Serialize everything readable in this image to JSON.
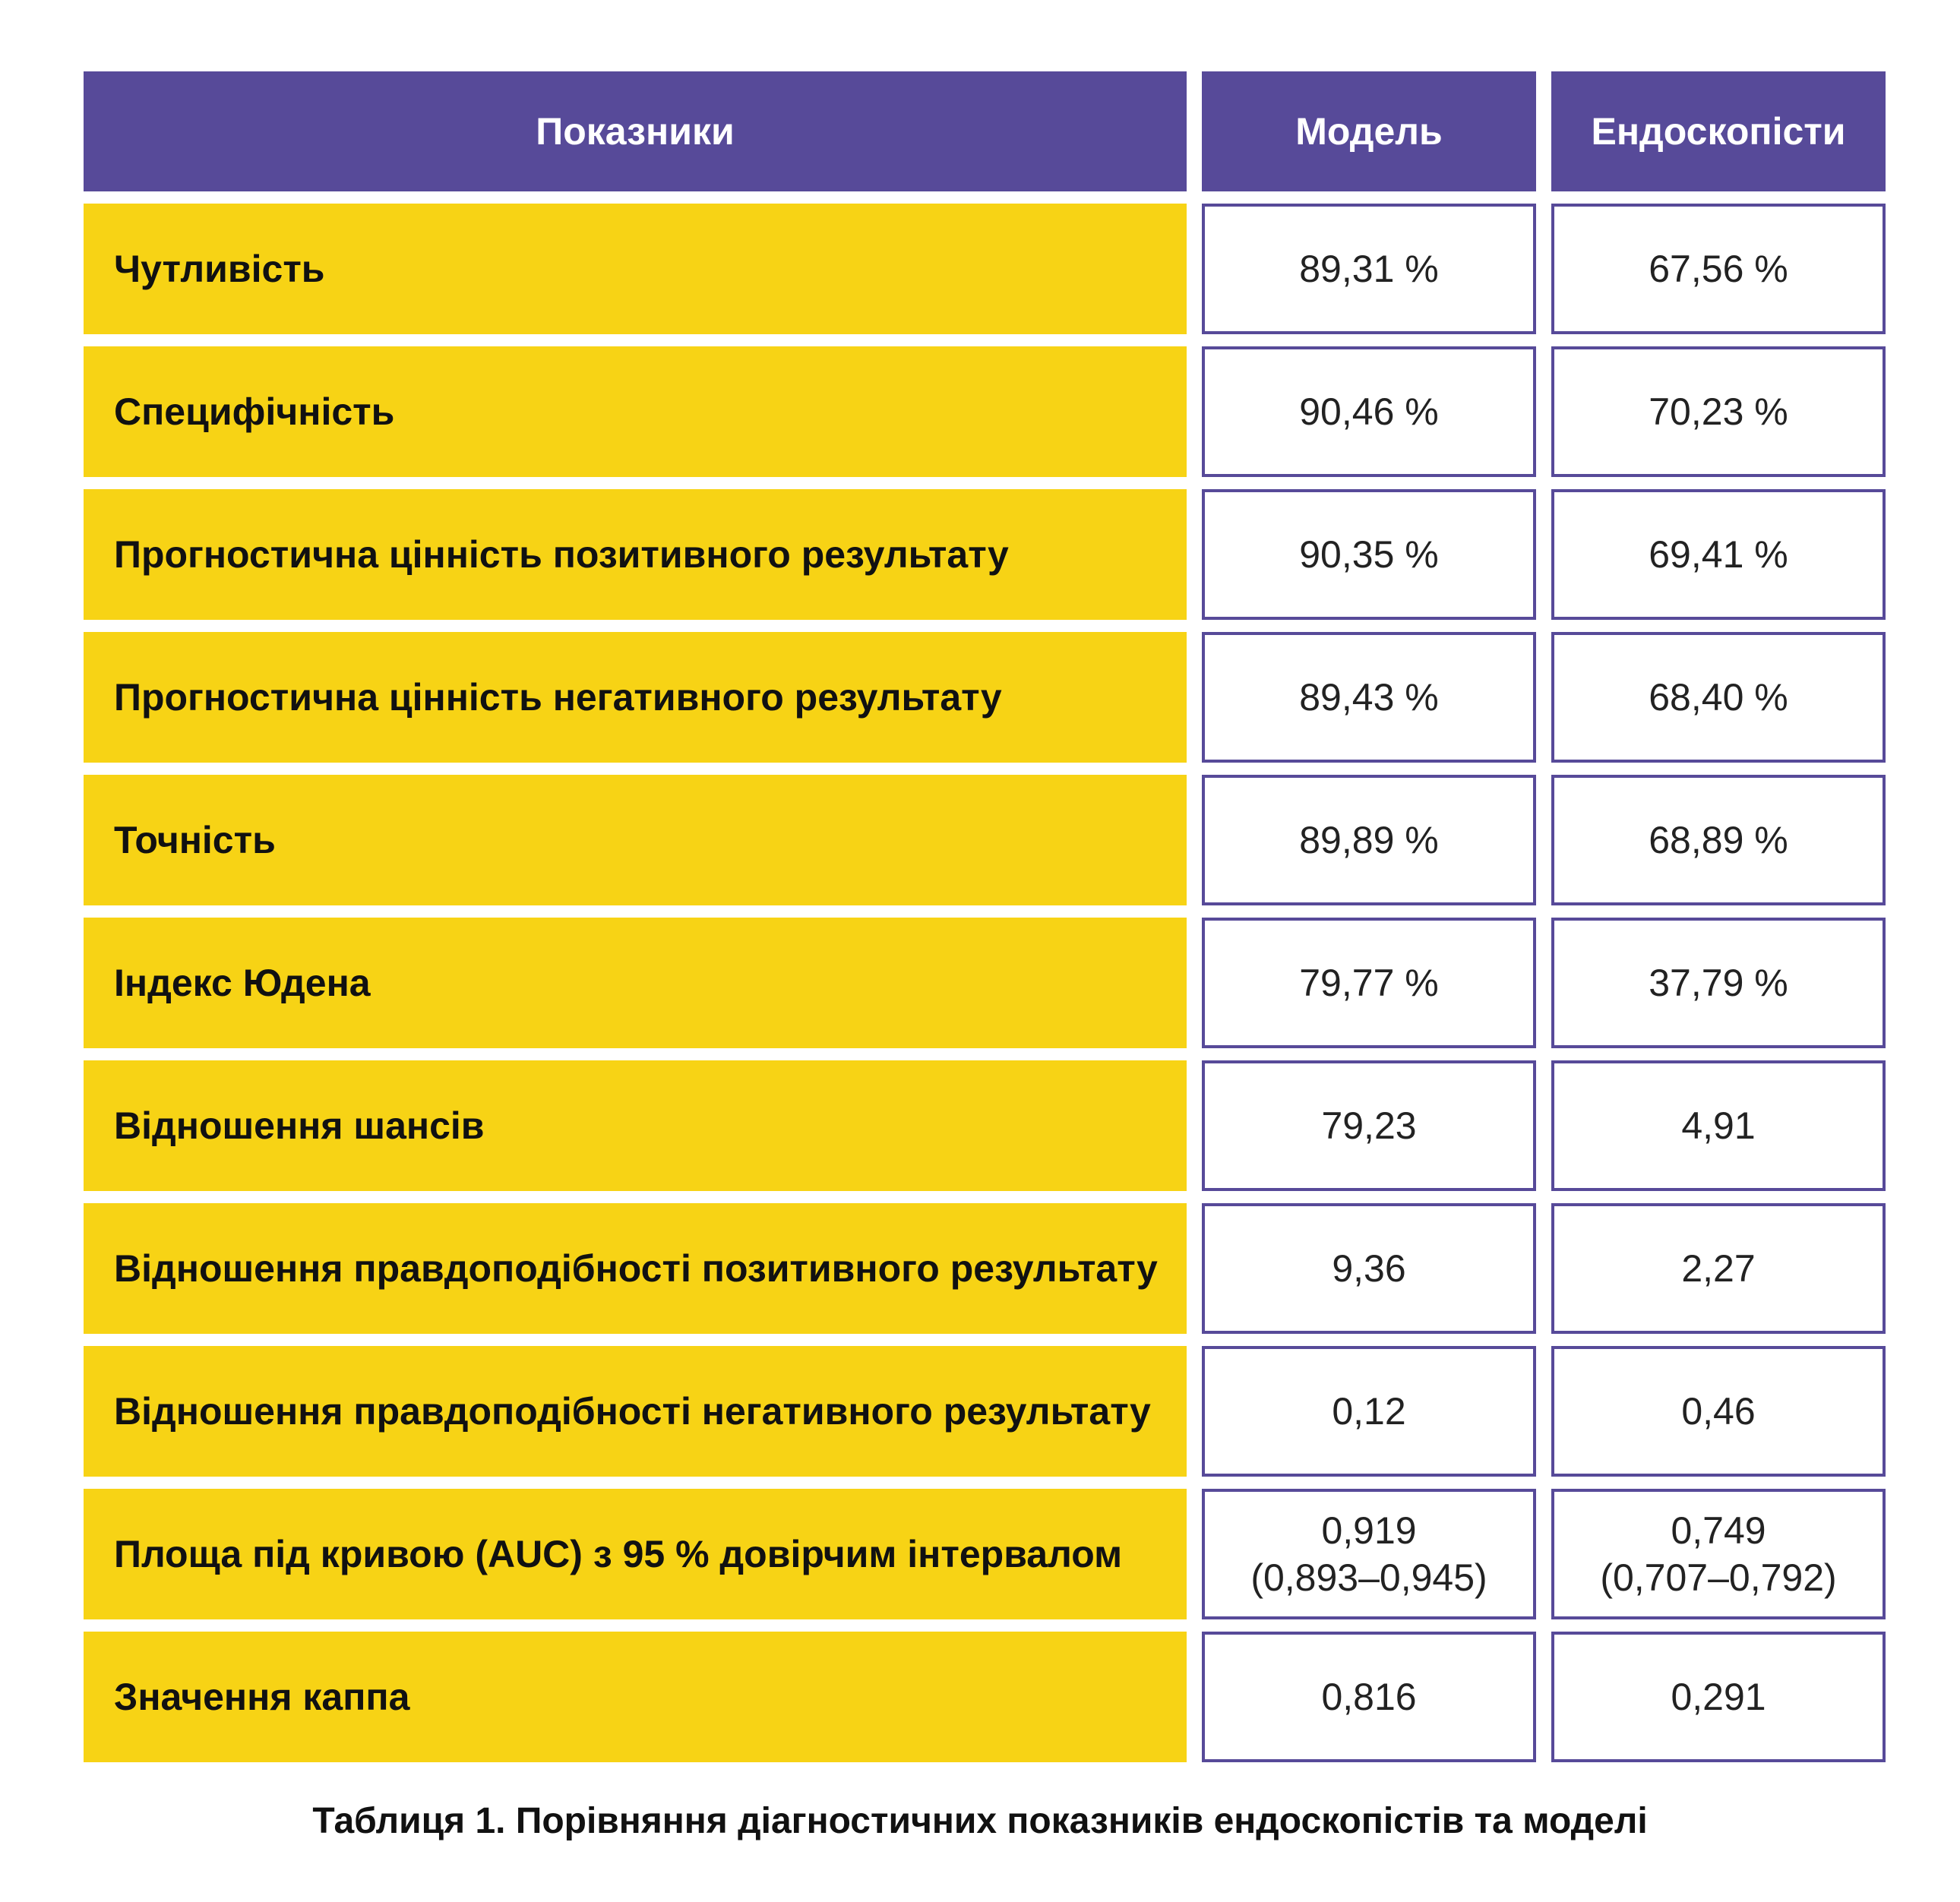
{
  "colors": {
    "header_bg": "#574a99",
    "header_text": "#ffffff",
    "label_bg": "#f7d315",
    "cell_border": "#574a99"
  },
  "header": {
    "col1": "Показники",
    "col2": "Модель",
    "col3": "Ендоскопісти"
  },
  "rows": [
    {
      "label": "Чутливість",
      "model": "89,31 %",
      "endo": "67,56 %"
    },
    {
      "label": "Специфічність",
      "model": "90,46 %",
      "endo": "70,23 %"
    },
    {
      "label": "Прогностична цінність позитивного результату",
      "model": "90,35 %",
      "endo": "69,41 %"
    },
    {
      "label": "Прогностична цінність негативного результату",
      "model": "89,43 %",
      "endo": "68,40 %"
    },
    {
      "label": "Точність",
      "model": "89,89 %",
      "endo": "68,89 %"
    },
    {
      "label": "Індекс Юдена",
      "model": "79,77 %",
      "endo": "37,79 %"
    },
    {
      "label": "Відношення шансів",
      "model": "79,23",
      "endo": "4,91"
    },
    {
      "label": "Відношення правдоподібності позитивного результату",
      "model": "9,36",
      "endo": "2,27"
    },
    {
      "label": "Відношення правдоподібності негативного результату",
      "model": "0,12",
      "endo": "0,46"
    },
    {
      "label": "Площа під кривою (AUC) з 95 % довірчим інтервалом",
      "model": "0,919",
      "model_ci": "(0,893–0,945)",
      "endo": "0,749",
      "endo_ci": "(0,707–0,792)"
    },
    {
      "label": "Значення каппа",
      "model": "0,816",
      "endo": "0,291"
    }
  ],
  "caption": "Таблиця 1. Порівняння діагностичних показників ендоскопістів та моделі"
}
